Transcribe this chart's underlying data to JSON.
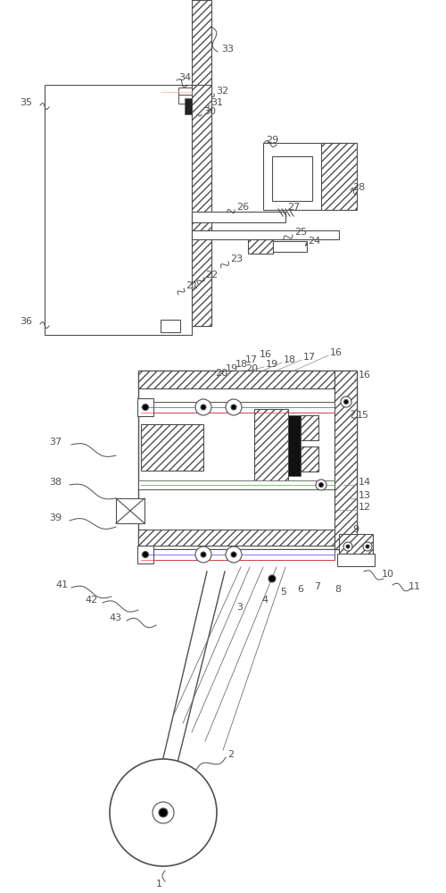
{
  "bg_color": "#ffffff",
  "line_color": "#505050",
  "label_color": "#505050",
  "label_fontsize": 8.0,
  "figsize": [
    5.0,
    10.0
  ],
  "dpi": 100
}
